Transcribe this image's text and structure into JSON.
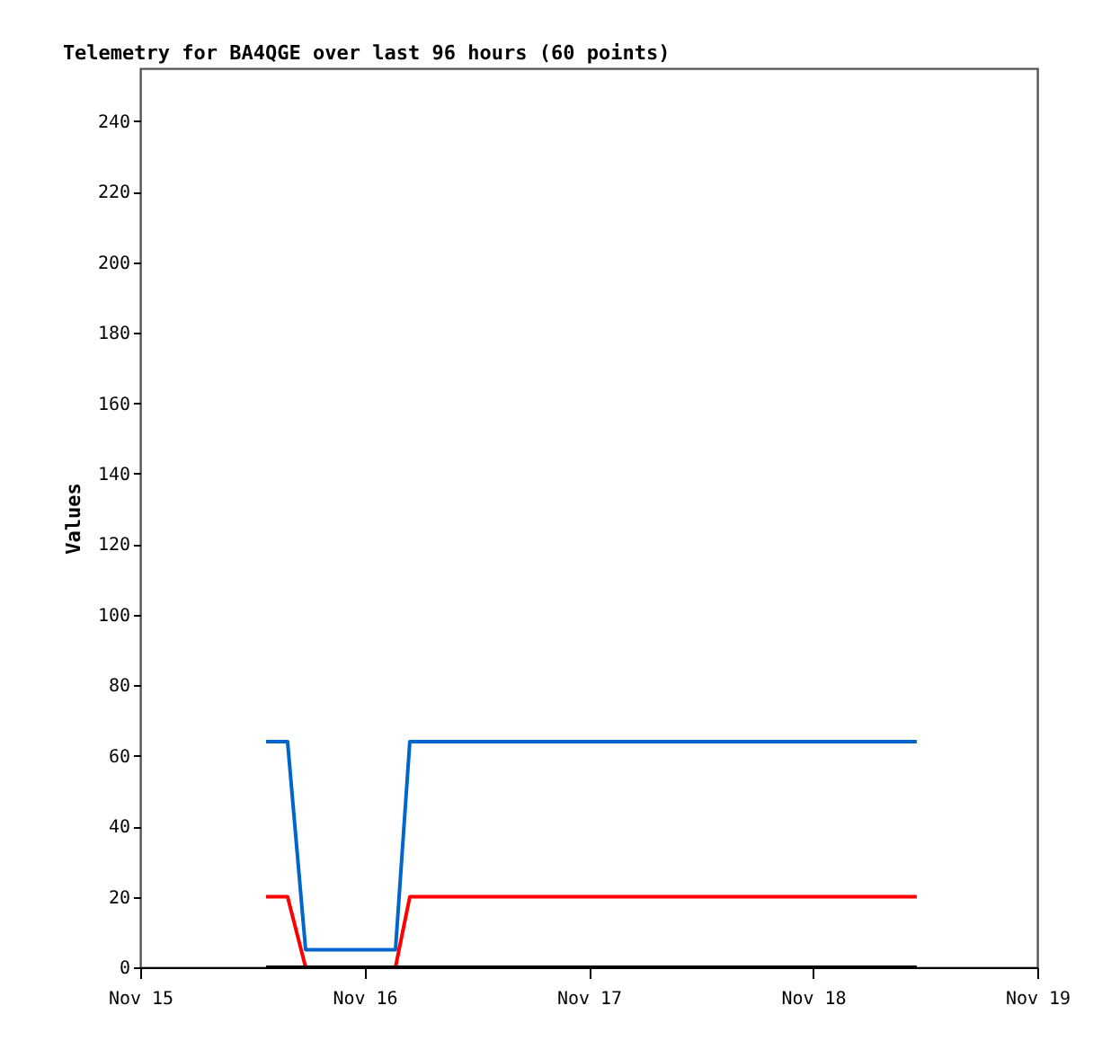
{
  "chart_data": {
    "type": "line",
    "title": "Telemetry for BA4QGE over last 96 hours (60 points)",
    "ylabel": "Values",
    "x": [
      "--11-15T13:28",
      "--11-15T15:46",
      "--11-15T17:42",
      "--11-16T03:19",
      "--11-16T04:51",
      "--11-18T11:06"
    ],
    "xlim": [
      "--11-15",
      "--11-19"
    ],
    "xticks": [
      {
        "value": "--11-15",
        "label": "Nov 15"
      },
      {
        "value": "--11-16",
        "label": "Nov 16"
      },
      {
        "value": "--11-17",
        "label": "Nov 17"
      },
      {
        "value": "--11-18",
        "label": "Nov 18"
      },
      {
        "value": "--11-19",
        "label": "Nov 19"
      }
    ],
    "ylim": [
      0,
      255
    ],
    "yticks": [
      0,
      20,
      40,
      60,
      80,
      100,
      120,
      140,
      160,
      180,
      200,
      220,
      240
    ],
    "series": [
      {
        "color": "#0066cc",
        "values": [
          64,
          64,
          5,
          5,
          64,
          64
        ]
      },
      {
        "color": "#ff0000",
        "values": [
          20,
          20,
          0,
          0,
          20,
          20
        ]
      },
      {
        "color": "#000000",
        "values": [
          0,
          0,
          0,
          0,
          0,
          0
        ]
      }
    ],
    "grid": false,
    "legend": false,
    "marker": "none",
    "line_style": "solid"
  }
}
